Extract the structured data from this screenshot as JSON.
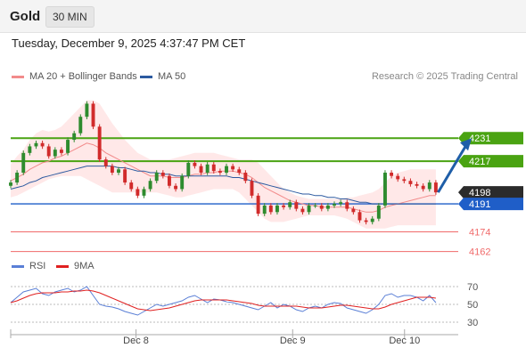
{
  "header": {
    "title": "Gold",
    "interval": "30 MIN"
  },
  "timestamp": "Tuesday, December 9, 2025 4:37:47 PM CET",
  "credit": "Research © 2025 Trading Central",
  "legend": {
    "bb": {
      "label": "MA 20 + Bollinger Bands",
      "color": "#f28b8b"
    },
    "ma50": {
      "label": "MA 50",
      "color": "#2c5aa0"
    },
    "rsi": {
      "label": "RSI",
      "color": "#5a7fd6"
    },
    "rsi_ma": {
      "label": "9MA",
      "color": "#e02020"
    }
  },
  "chart_data": [
    {
      "type": "line",
      "ylim": [
        4158,
        4262
      ],
      "xlim": [
        0,
        100
      ],
      "x_ticks": [
        {
          "x": 28,
          "label": "Dec 8"
        },
        {
          "x": 63,
          "label": "Dec 9"
        },
        {
          "x": 88,
          "label": "Dec 10"
        }
      ],
      "levels": [
        {
          "value": 4231,
          "label": "4231",
          "kind": "resistance"
        },
        {
          "value": 4217,
          "label": "4217",
          "kind": "resistance"
        },
        {
          "value": 4198,
          "label": "4198",
          "kind": "last"
        },
        {
          "value": 4191,
          "label": "4191",
          "kind": "pivot"
        },
        {
          "value": 4174,
          "label": "4174",
          "kind": "support"
        },
        {
          "value": 4162,
          "label": "4162",
          "kind": "support"
        }
      ],
      "close": [
        4204,
        4210,
        4222,
        4226,
        4228,
        4226,
        4220,
        4224,
        4222,
        4230,
        4234,
        4244,
        4252,
        4238,
        4218,
        4214,
        4210,
        4212,
        4204,
        4200,
        4196,
        4200,
        4205,
        4210,
        4208,
        4202,
        4200,
        4208,
        4216,
        4214,
        4210,
        4215,
        4211,
        4210,
        4214,
        4212,
        4210,
        4205,
        4196,
        4185,
        4190,
        4186,
        4190,
        4189,
        4192,
        4188,
        4186,
        4190,
        4190,
        4188,
        4190,
        4191,
        4192,
        4188,
        4186,
        4181,
        4180,
        4182,
        4190,
        4210,
        4208,
        4206,
        4205,
        4203,
        4202,
        4200,
        4204,
        4198
      ],
      "ma20": [
        4205,
        4207,
        4209,
        4212,
        4214,
        4216,
        4217,
        4219,
        4220,
        4222,
        4224,
        4226,
        4228,
        4227,
        4225,
        4222,
        4220,
        4218,
        4216,
        4214,
        4212,
        4210,
        4208,
        4208,
        4208,
        4207,
        4207,
        4207,
        4208,
        4209,
        4209,
        4210,
        4210,
        4211,
        4211,
        4211,
        4210,
        4209,
        4207,
        4204,
        4201,
        4199,
        4197,
        4195,
        4193,
        4192,
        4191,
        4190,
        4190,
        4189,
        4189,
        4189,
        4189,
        4189,
        4188,
        4187,
        4186,
        4186,
        4187,
        4189,
        4190,
        4191,
        4192,
        4193,
        4194,
        4195,
        4196,
        4196
      ],
      "bb_upper": [
        4215,
        4220,
        4224,
        4230,
        4234,
        4236,
        4235,
        4236,
        4238,
        4242,
        4246,
        4250,
        4254,
        4254,
        4252,
        4246,
        4240,
        4235,
        4230,
        4226,
        4222,
        4220,
        4218,
        4218,
        4218,
        4218,
        4219,
        4220,
        4221,
        4222,
        4222,
        4222,
        4222,
        4221,
        4220,
        4219,
        4218,
        4218,
        4218,
        4216,
        4212,
        4208,
        4204,
        4200,
        4198,
        4196,
        4195,
        4194,
        4194,
        4194,
        4194,
        4194,
        4194,
        4195,
        4195,
        4196,
        4197,
        4198,
        4200,
        4204,
        4208,
        4210,
        4211,
        4212,
        4212,
        4212,
        4212,
        4212
      ],
      "bb_lower": [
        4195,
        4196,
        4198,
        4200,
        4202,
        4204,
        4206,
        4207,
        4208,
        4208,
        4208,
        4208,
        4206,
        4204,
        4202,
        4200,
        4198,
        4198,
        4198,
        4198,
        4198,
        4198,
        4198,
        4198,
        4197,
        4196,
        4195,
        4195,
        4196,
        4197,
        4198,
        4199,
        4200,
        4200,
        4200,
        4200,
        4198,
        4194,
        4190,
        4186,
        4182,
        4180,
        4180,
        4180,
        4181,
        4182,
        4183,
        4184,
        4184,
        4184,
        4184,
        4184,
        4183,
        4182,
        4180,
        4178,
        4176,
        4176,
        4176,
        4176,
        4177,
        4178,
        4178,
        4178,
        4178,
        4178,
        4178,
        4178
      ],
      "ma50": [
        4200,
        4201,
        4202,
        4204,
        4205,
        4207,
        4208,
        4209,
        4210,
        4211,
        4212,
        4213,
        4214,
        4214,
        4214,
        4214,
        4214,
        4213,
        4213,
        4212,
        4211,
        4211,
        4210,
        4210,
        4209,
        4209,
        4208,
        4208,
        4208,
        4208,
        4208,
        4208,
        4208,
        4208,
        4208,
        4207,
        4207,
        4206,
        4205,
        4204,
        4203,
        4202,
        4201,
        4200,
        4199,
        4198,
        4197,
        4197,
        4196,
        4196,
        4195,
        4195,
        4194,
        4194,
        4193,
        4192,
        4192,
        4191,
        4191,
        4191,
        4191,
        4191,
        4191,
        4191,
        4191,
        4191,
        4191,
        4191
      ],
      "forecast": {
        "from_x": 95.5,
        "from_y": 4198,
        "to_x": 103,
        "to_y": 4231
      }
    },
    {
      "type": "line",
      "ylim": [
        20,
        80
      ],
      "y_ticks": [
        70,
        50,
        30
      ],
      "rsi": [
        52,
        58,
        64,
        66,
        68,
        62,
        60,
        64,
        66,
        68,
        64,
        66,
        70,
        60,
        50,
        48,
        47,
        45,
        42,
        40,
        38,
        42,
        46,
        50,
        48,
        50,
        52,
        54,
        58,
        60,
        56,
        52,
        56,
        55,
        53,
        52,
        50,
        48,
        46,
        44,
        48,
        52,
        46,
        50,
        48,
        44,
        42,
        46,
        48,
        46,
        50,
        52,
        51,
        46,
        44,
        42,
        40,
        44,
        50,
        60,
        62,
        58,
        60,
        60,
        58,
        54,
        60,
        52
      ],
      "rsi_ma": [
        52,
        54,
        57,
        60,
        62,
        63,
        63,
        63,
        64,
        64,
        65,
        65,
        66,
        65,
        63,
        60,
        57,
        54,
        51,
        48,
        45,
        44,
        43,
        44,
        45,
        46,
        48,
        50,
        52,
        54,
        55,
        55,
        55,
        55,
        55,
        54,
        53,
        52,
        51,
        49,
        48,
        48,
        48,
        48,
        48,
        48,
        47,
        46,
        46,
        46,
        47,
        48,
        49,
        49,
        48,
        47,
        46,
        45,
        45,
        47,
        50,
        52,
        54,
        56,
        58,
        58,
        58,
        57
      ]
    }
  ]
}
